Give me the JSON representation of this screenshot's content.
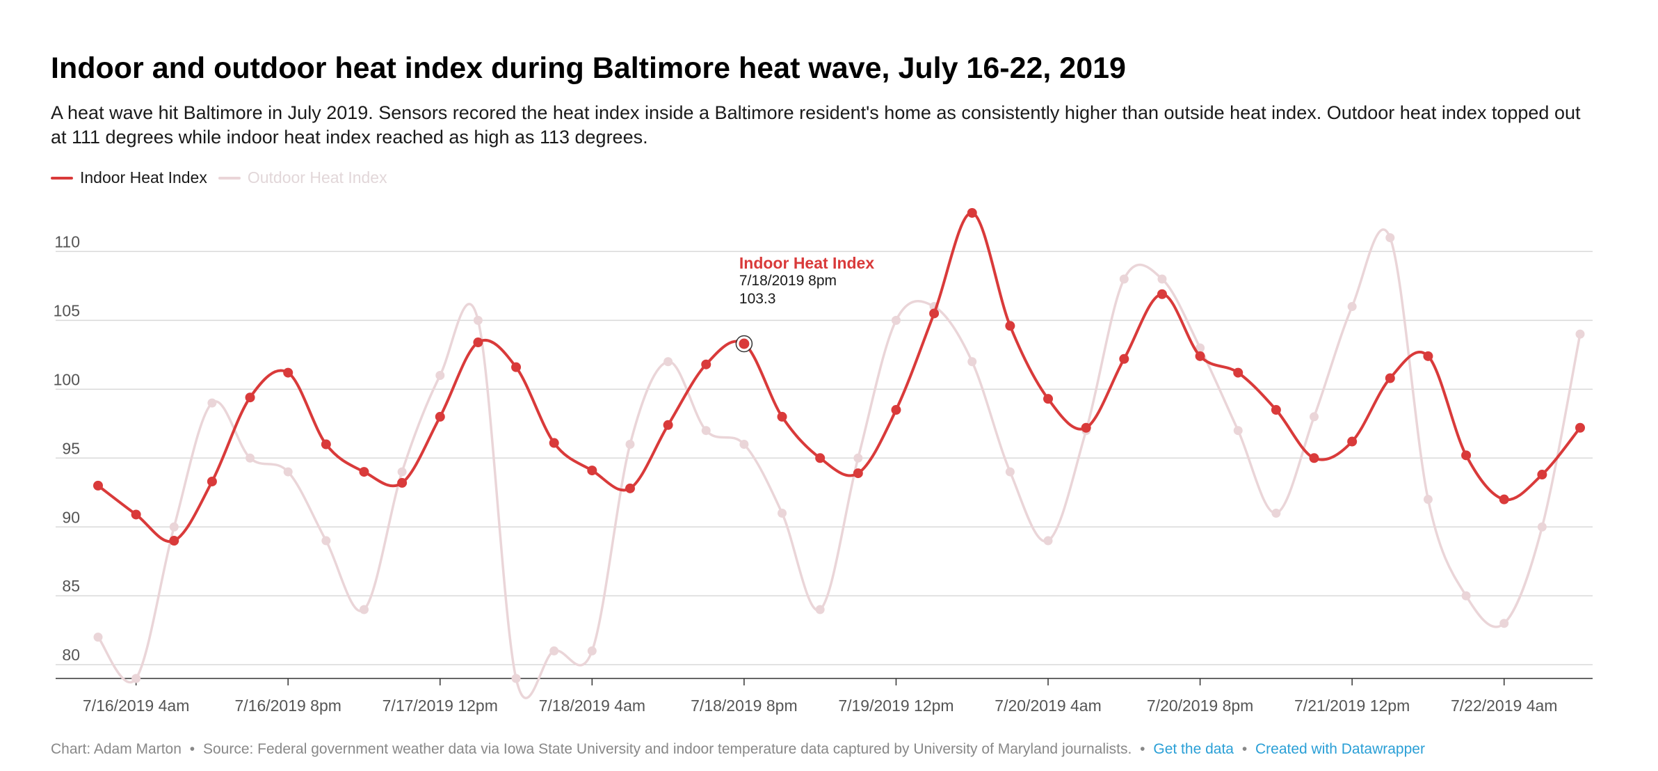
{
  "title": "Indoor and outdoor heat index during Baltimore heat wave, July 16-22, 2019",
  "subtitle": "A heat wave hit Baltimore in July 2019. Sensors recored the heat index inside a Baltimore resident's home as consistently higher than outside heat index. Outdoor heat index topped out at 111 degrees while indoor heat index reached as high as 113 degrees.",
  "footer": {
    "credit": "Chart: Adam Marton",
    "source": "Source: Federal government weather data via Iowa State University and indoor temperature data captured by University of Maryland journalists.",
    "get_data": "Get the data",
    "created_with": "Created with Datawrapper",
    "bullet": "•"
  },
  "tooltip": {
    "series": "Indoor Heat Index",
    "x": "7/18/2019 8pm",
    "value": "103.3"
  },
  "colors": {
    "indoor": "#d93a3a",
    "outdoor": "#ead5d8",
    "grid": "#d9d9d9",
    "axis_text": "#555555"
  },
  "chart_data": {
    "type": "line",
    "x_interval_hours": 4,
    "x_start": "7/16/2019 12am",
    "x_tick_labels": [
      "7/16/2019 4am",
      "7/16/2019 8pm",
      "7/17/2019 12pm",
      "7/18/2019 4am",
      "7/18/2019 8pm",
      "7/19/2019 12pm",
      "7/20/2019 4am",
      "7/20/2019 8pm",
      "7/21/2019 12pm",
      "7/22/2019 4am"
    ],
    "x_tick_index": [
      1,
      5,
      9,
      13,
      17,
      21,
      25,
      29,
      33,
      37
    ],
    "ylim": [
      79,
      113
    ],
    "y_ticks": [
      80,
      85,
      90,
      95,
      100,
      105,
      110
    ],
    "grid": true,
    "legend_position": "top-left",
    "series": [
      {
        "name": "Indoor Heat Index",
        "values": [
          93,
          90.9,
          89,
          93.3,
          99.4,
          101.2,
          96,
          94,
          93.2,
          98,
          103.4,
          101.6,
          96.1,
          94.1,
          92.8,
          97.4,
          101.8,
          103.3,
          98,
          95,
          93.9,
          98.5,
          105.5,
          112.8,
          104.6,
          99.3,
          97.2,
          102.2,
          106.9,
          102.4,
          101.2,
          98.5,
          95,
          96.2,
          100.8,
          102.4,
          95.2,
          92,
          93.8,
          97.2
        ]
      },
      {
        "name": "Outdoor Heat Index",
        "values": [
          82,
          79,
          90,
          99,
          95,
          94,
          89,
          84,
          94,
          101,
          105,
          79,
          81,
          81,
          96,
          102,
          97,
          96,
          91,
          84,
          95,
          105,
          106,
          102,
          94,
          89,
          97,
          108,
          108,
          103,
          97,
          91,
          98,
          106,
          111,
          92,
          85,
          83,
          90,
          104
        ]
      }
    ]
  }
}
